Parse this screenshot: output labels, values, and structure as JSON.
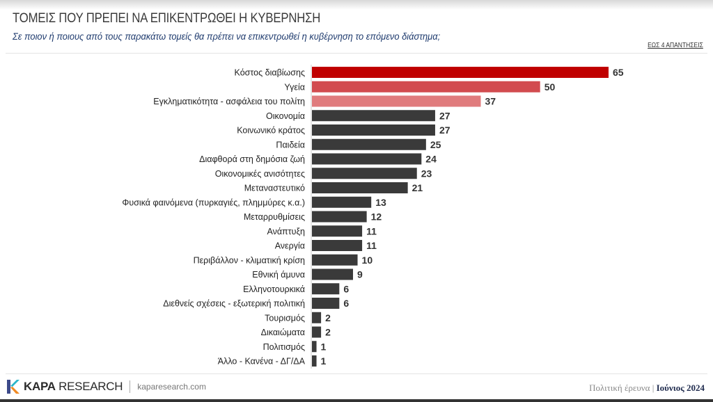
{
  "header": {
    "title": "ΤΟΜΕΙΣ ΠΟΥ ΠΡΕΠΕΙ ΝΑ ΕΠΙΚΕΝΤΡΩΘΕΙ Η ΚΥΒΕΡΝΗΣΗ",
    "subtitle": "Σε ποιον ή ποιους από τους παρακάτω τομείς θα πρέπει να επικεντρωθεί η κυβέρνηση το επόμενο διάστημα;",
    "note": "ΕΩΣ 4 ΑΠΑΝΤΗΣΕΙΣ"
  },
  "chart_data": {
    "type": "bar",
    "orientation": "horizontal",
    "title": "ΤΟΜΕΙΣ ΠΟΥ ΠΡΕΠΕΙ ΝΑ ΕΠΙΚΕΝΤΡΩΘΕΙ Η ΚΥΒΕΡΝΗΣΗ",
    "xlim": [
      0,
      65
    ],
    "grid": false,
    "categories": [
      "Κόστος διαβίωσης",
      "Υγεία",
      "Εγκληματικότητα - ασφάλεια του πολίτη",
      "Οικονομία",
      "Κοινωνικό κράτος",
      "Παιδεία",
      "Διαφθορά στη δημόσια ζωή",
      "Οικονομικές ανισότητες",
      "Μεταναστευτικό",
      "Φυσικά φαινόμενα (πυρκαγιές, πλημμύρες κ.α.)",
      "Μεταρρυθμίσεις",
      "Ανάπτυξη",
      "Ανεργία",
      "Περιβάλλον - κλιματική κρίση",
      "Εθνική άμυνα",
      "Ελληνοτουρκικά",
      "Διεθνείς σχέσεις - εξωτερική πολιτική",
      "Τουρισμός",
      "Δικαιώματα",
      "Πολιτισμός",
      "Άλλο - Κανένα - ΔΓ/ΔΑ"
    ],
    "values": [
      65,
      50,
      37,
      27,
      27,
      25,
      24,
      23,
      21,
      13,
      12,
      11,
      11,
      10,
      9,
      6,
      6,
      2,
      2,
      1,
      1
    ],
    "colors": [
      "#c00000",
      "#d24b4f",
      "#e07b7d",
      "#3a3a3a"
    ]
  },
  "footer": {
    "brand_bold": "KAPA",
    "brand_rest": "RESEARCH",
    "url": "kaparesearch.com",
    "survey": "Πολιτική έρευνα",
    "date": "Ιούνιος 2024"
  }
}
